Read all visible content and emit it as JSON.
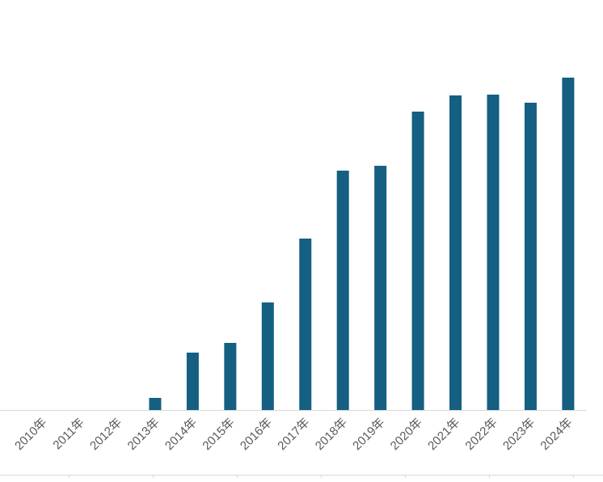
{
  "chart_data": {
    "type": "bar",
    "categories": [
      "2010年",
      "2011年",
      "2012年",
      "2013年",
      "2014年",
      "2015年",
      "2016年",
      "2017年",
      "2018年",
      "2019年",
      "2020年",
      "2021年",
      "2022年",
      "2023年",
      "2024年"
    ],
    "values": [
      0,
      0,
      0,
      15,
      71,
      83,
      133,
      212,
      296,
      302,
      369,
      389,
      390,
      380,
      411
    ],
    "color": "#145f82"
  }
}
